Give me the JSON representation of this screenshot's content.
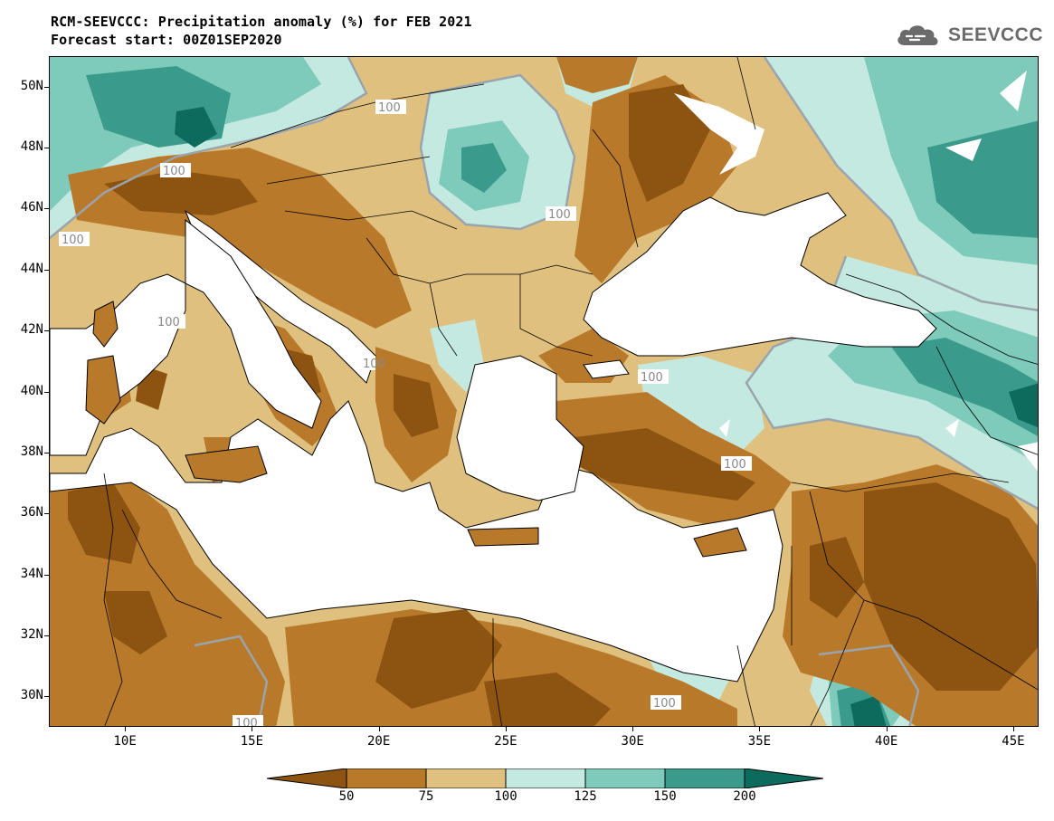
{
  "title": {
    "line1": "RCM-SEEVCCC: Precipitation anomaly (%) for FEB 2021",
    "line2": "Forecast start: 00Z01SEP2020"
  },
  "logo": {
    "text": "SEEVCCC",
    "icon": "cloud-icon",
    "color": "#6b6b6b"
  },
  "map": {
    "lon_range": [
      7,
      46
    ],
    "lat_range": [
      29,
      51
    ],
    "lat_ticks": [
      "50N",
      "48N",
      "46N",
      "44N",
      "42N",
      "40N",
      "38N",
      "36N",
      "34N",
      "32N",
      "30N"
    ],
    "lon_ticks": [
      "10E",
      "15E",
      "20E",
      "25E",
      "30E",
      "35E",
      "40E",
      "45E"
    ],
    "contour_labels": [
      "100",
      "100",
      "100",
      "100",
      "100",
      "100",
      "100",
      "100",
      "100",
      "100"
    ]
  },
  "legend": {
    "levels": [
      "50",
      "75",
      "100",
      "125",
      "150",
      "200"
    ],
    "colors": [
      "#8c5410",
      "#b8792b",
      "#dfc07e",
      "#c4e9e0",
      "#7ecabb",
      "#3a9a8c",
      "#0d6b5d"
    ]
  }
}
